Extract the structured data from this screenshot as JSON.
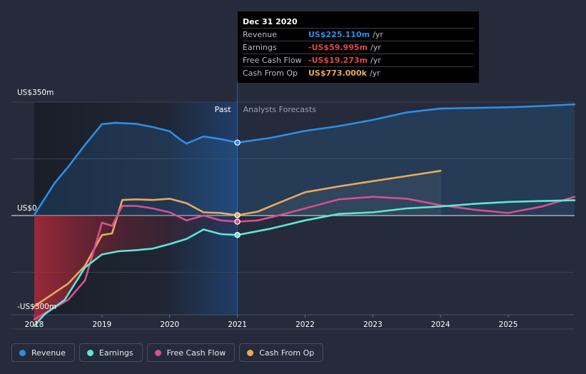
{
  "chart_data": {
    "type": "line",
    "title": "",
    "xlabel": "",
    "ylabel": "",
    "xlim": [
      2018.0,
      2025.98
    ],
    "ylim": [
      -350,
      350
    ],
    "y_tick_labels": [
      {
        "value": 350,
        "label": "US$350m"
      },
      {
        "value": 0,
        "label": "US$0"
      },
      {
        "value": -300,
        "label": "-US$300m"
      }
    ],
    "x_ticks": [
      2018,
      2019,
      2020,
      2021,
      2022,
      2023,
      2024,
      2025
    ],
    "x_tick_labels": [
      "2018",
      "2019",
      "2020",
      "2021",
      "2022",
      "2023",
      "2024",
      "2025"
    ],
    "divider_x": 2021.0,
    "past_label": "Past",
    "forecast_label": "Analysts Forecasts",
    "series": [
      {
        "name": "Revenue",
        "color": "#2d8ee8",
        "area": true,
        "x": [
          2018.0,
          2018.3,
          2018.5,
          2018.75,
          2019.0,
          2019.2,
          2019.5,
          2019.75,
          2020.0,
          2020.15,
          2020.25,
          2020.5,
          2020.75,
          2021.0,
          2021.5,
          2022.0,
          2022.5,
          2023.0,
          2023.5,
          2024.0,
          2024.5,
          2025.0,
          2025.5,
          2025.98
        ],
        "values": [
          2,
          100,
          150,
          218,
          282,
          286,
          283,
          273,
          260,
          235,
          222,
          244,
          236,
          225,
          240,
          261,
          276,
          295,
          318,
          330,
          332,
          334,
          338,
          343
        ]
      },
      {
        "name": "Earnings",
        "color": "#5ee6d6",
        "area": true,
        "x": [
          2018.0,
          2018.15,
          2018.45,
          2018.75,
          2019.0,
          2019.25,
          2019.5,
          2019.75,
          2020.0,
          2020.25,
          2020.5,
          2020.75,
          2021.0,
          2021.5,
          2022.0,
          2022.5,
          2023.0,
          2023.5,
          2024.0,
          2024.5,
          2025.0,
          2025.5,
          2025.98
        ],
        "values": [
          -340,
          -305,
          -260,
          -160,
          -120,
          -110,
          -107,
          -102,
          -88,
          -72,
          -43,
          -57,
          -60,
          -40,
          -15,
          5,
          10,
          22,
          28,
          36,
          42,
          45,
          47
        ]
      },
      {
        "name": "Free Cash Flow",
        "color": "#d6508e",
        "area": true,
        "x": [
          2018.0,
          2018.25,
          2018.5,
          2018.75,
          2019.0,
          2019.15,
          2019.3,
          2019.5,
          2019.75,
          2020.0,
          2020.25,
          2020.5,
          2020.75,
          2021.0,
          2021.3,
          2021.6,
          2022.0,
          2022.5,
          2023.0,
          2023.5,
          2024.0,
          2024.5,
          2025.0,
          2025.5,
          2025.98
        ],
        "values": [
          -320,
          -290,
          -260,
          -200,
          -22,
          -32,
          30,
          30,
          22,
          10,
          -15,
          0,
          -15,
          -19,
          -15,
          0,
          22,
          50,
          58,
          52,
          32,
          18,
          8,
          28,
          58
        ]
      },
      {
        "name": "Cash From Op",
        "color": "#e8a960",
        "area": false,
        "x": [
          2018.0,
          2018.25,
          2018.5,
          2018.75,
          2019.0,
          2019.15,
          2019.3,
          2019.5,
          2019.75,
          2020.0,
          2020.25,
          2020.5,
          2020.75,
          2021.0,
          2021.3,
          2021.6,
          2022.0,
          2022.5,
          2023.0,
          2023.5,
          2024.0
        ],
        "values": [
          -280,
          -245,
          -210,
          -155,
          -60,
          -55,
          48,
          50,
          48,
          52,
          38,
          10,
          8,
          1,
          12,
          38,
          72,
          90,
          106,
          122,
          138
        ]
      }
    ],
    "hover_markers": [
      {
        "series": "Revenue",
        "x": 2021.0,
        "value": 225
      },
      {
        "series": "Cash From Op",
        "x": 2021.0,
        "value": 1
      },
      {
        "series": "Free Cash Flow",
        "x": 2021.0,
        "value": -19
      },
      {
        "series": "Earnings",
        "x": 2021.0,
        "value": -60
      }
    ]
  },
  "tooltip": {
    "date": "Dec 31 2020",
    "rows": [
      {
        "label": "Revenue",
        "value": "US$225.110m",
        "unit": "/yr",
        "color": "#2d8ee8"
      },
      {
        "label": "Earnings",
        "value": "-US$59.995m",
        "unit": "/yr",
        "color": "#e04848"
      },
      {
        "label": "Free Cash Flow",
        "value": "-US$19.273m",
        "unit": "/yr",
        "color": "#e04848"
      },
      {
        "label": "Cash From Op",
        "value": "US$773.000k",
        "unit": "/yr",
        "color": "#e8a960"
      }
    ]
  },
  "legend": [
    {
      "label": "Revenue",
      "color": "#2d8ee8"
    },
    {
      "label": "Earnings",
      "color": "#5ee6d6"
    },
    {
      "label": "Free Cash Flow",
      "color": "#d6508e"
    },
    {
      "label": "Cash From Op",
      "color": "#e8a960"
    }
  ]
}
